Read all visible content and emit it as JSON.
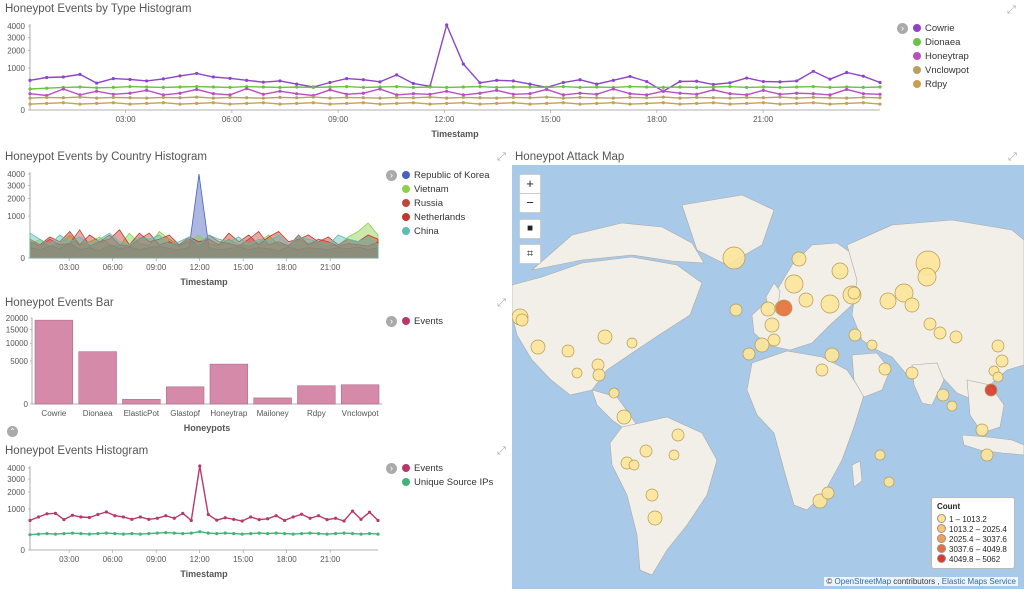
{
  "colors": {
    "cowrie": "#8e44c9",
    "dionaea": "#6cc247",
    "honeytrap": "#b84fc1",
    "vnclowpot": "#b8a15e",
    "rdpy": "#c8a050",
    "korea": "#4a5fbf",
    "vietnam": "#8ecf4a",
    "russia": "#c0463c",
    "netherlands": "#c0392b",
    "china": "#5cbdb2",
    "bar": "#d48aa8",
    "events": "#b8386a",
    "unique": "#43b37a"
  },
  "panel1": {
    "title": "Honeypot Events by Type Histogram",
    "xlabel": "Timestamp",
    "legend": [
      "Cowrie",
      "Dionaea",
      "Honeytrap",
      "Vnclowpot",
      "Rdpy"
    ]
  },
  "panel2": {
    "title": "Honeypot Events by Country Histogram",
    "xlabel": "Timestamp",
    "legend": [
      "Republic of Korea",
      "Vietnam",
      "Russia",
      "Netherlands",
      "China"
    ]
  },
  "panel3": {
    "title": "Honeypot Events Bar",
    "xlabel": "Honeypots",
    "legend": [
      "Events"
    ]
  },
  "panel4": {
    "title": "Honeypot Events Histogram",
    "xlabel": "Timestamp",
    "legend": [
      "Events",
      "Unique Source IPs"
    ]
  },
  "map": {
    "title": "Honeypot Attack Map",
    "controls": {
      "zoom_in": "+",
      "zoom_out": "−",
      "draw": "■",
      "crop": "⌗"
    },
    "legend_title": "Count",
    "legend": [
      "1 – 1013.2",
      "1013.2 – 2025.4",
      "2025.4 – 3037.6",
      "3037.6 – 4049.8",
      "4049.8 – 5062"
    ],
    "legend_colors": [
      "#fde59a",
      "#f8c873",
      "#f0a055",
      "#e5703f",
      "#d93a2b"
    ],
    "attribution": {
      "prefix": "©",
      "osm": "OpenStreetMap",
      "mid": "contributors ,",
      "ems": "Elastic Maps Service"
    }
  },
  "chart_data": [
    {
      "type": "line",
      "title": "Honeypot Events by Type Histogram",
      "xlabel": "Timestamp",
      "x_ticks": [
        "03:00",
        "06:00",
        "09:00",
        "12:00",
        "15:00",
        "18:00",
        "21:00"
      ],
      "y_ticks": [
        "0",
        "1000",
        "2000",
        "3000",
        "4000"
      ],
      "ylim": [
        0,
        4200
      ],
      "series": [
        {
          "name": "Cowrie",
          "values": [
            500,
            600,
            620,
            720,
            410,
            560,
            530,
            480,
            550,
            660,
            760,
            620,
            570,
            500,
            440,
            480,
            380,
            300,
            430,
            560,
            520,
            450,
            700,
            400,
            320,
            4100,
            1200,
            420,
            500,
            480,
            380,
            290,
            430,
            520,
            380,
            500,
            640,
            460,
            200,
            460,
            470,
            370,
            420,
            580,
            460,
            450,
            480,
            850,
            540,
            800,
            650,
            430
          ]
        },
        {
          "name": "Dionaea",
          "values": [
            250,
            270,
            290,
            300,
            280,
            290,
            310,
            300,
            290,
            300,
            310,
            300,
            290,
            310,
            300,
            290,
            300,
            290,
            300,
            310,
            290,
            300,
            310,
            290,
            300,
            290,
            300,
            310,
            290,
            300,
            300,
            290,
            310,
            290,
            300,
            290,
            310,
            300,
            290,
            300,
            290,
            300,
            310,
            290,
            300,
            290,
            300,
            310,
            290,
            300,
            290,
            300
          ]
        },
        {
          "name": "Honeytrap",
          "values": [
            150,
            120,
            250,
            130,
            200,
            140,
            160,
            220,
            130,
            160,
            240,
            150,
            130,
            260,
            140,
            200,
            150,
            120,
            230,
            140,
            160,
            250,
            130,
            150,
            140,
            200,
            130,
            160,
            220,
            140,
            150,
            240,
            130,
            160,
            140,
            250,
            150,
            130,
            200,
            160,
            140,
            230,
            150,
            130,
            220,
            140,
            160,
            150,
            130,
            240,
            150,
            140
          ]
        },
        {
          "name": "Vnclowpot",
          "values": [
            80,
            90,
            85,
            95,
            80,
            90,
            85,
            80,
            90,
            85,
            95,
            80,
            90,
            85,
            80,
            90,
            85,
            95,
            80,
            90,
            85,
            80,
            90,
            85,
            95,
            80,
            90,
            85,
            80,
            90,
            85,
            95,
            80,
            90,
            85,
            80,
            90,
            85,
            95,
            80,
            90,
            85,
            80,
            90,
            85,
            95,
            80,
            90,
            85,
            80,
            90,
            85
          ]
        },
        {
          "name": "Rdpy",
          "values": [
            20,
            25,
            30,
            20,
            25,
            30,
            20,
            25,
            30,
            20,
            25,
            30,
            20,
            25,
            30,
            20,
            25,
            30,
            20,
            25,
            30,
            20,
            25,
            30,
            20,
            25,
            30,
            20,
            25,
            30,
            20,
            25,
            30,
            20,
            25,
            30,
            20,
            25,
            30,
            20,
            25,
            30,
            20,
            25,
            30,
            20,
            25,
            30,
            20,
            25,
            30,
            20
          ]
        }
      ]
    },
    {
      "type": "area",
      "title": "Honeypot Events by Country Histogram",
      "xlabel": "Timestamp",
      "x_ticks": [
        "03:00",
        "06:00",
        "09:00",
        "12:00",
        "15:00",
        "18:00",
        "21:00"
      ],
      "y_ticks": [
        "0",
        "1000",
        "2000",
        "3000",
        "4000"
      ],
      "ylim": [
        0,
        4200
      ],
      "series": [
        {
          "name": "Republic of Korea",
          "values": [
            60,
            40,
            80,
            50,
            120,
            40,
            60,
            30,
            90,
            50,
            70,
            40,
            60,
            80,
            50,
            40,
            60,
            4000,
            60,
            40,
            50,
            70,
            40,
            60,
            50,
            30,
            70,
            40,
            60,
            50,
            40,
            60,
            50,
            70,
            40,
            60
          ]
        },
        {
          "name": "Vietnam",
          "values": [
            100,
            200,
            80,
            120,
            300,
            90,
            150,
            250,
            100,
            80,
            350,
            120,
            90,
            400,
            200,
            100,
            150,
            300,
            120,
            90,
            200,
            100,
            80,
            150,
            300,
            100,
            90,
            200,
            120,
            150,
            100,
            80,
            250,
            400,
            700,
            300
          ]
        },
        {
          "name": "Russia",
          "values": [
            150,
            80,
            200,
            100,
            120,
            450,
            80,
            150,
            300,
            100,
            80,
            200,
            350,
            100,
            150,
            80,
            200,
            100,
            300,
            150,
            120,
            80,
            200,
            400,
            100,
            150,
            80,
            300,
            100,
            200,
            150,
            80,
            120,
            100,
            80,
            150
          ]
        },
        {
          "name": "Netherlands",
          "values": [
            200,
            100,
            250,
            150,
            400,
            100,
            300,
            150,
            200,
            450,
            100,
            350,
            150,
            200,
            300,
            100,
            250,
            150,
            200,
            100,
            350,
            150,
            300,
            100,
            250,
            400,
            150,
            200,
            300,
            150,
            250,
            100,
            200,
            150,
            300,
            200
          ]
        },
        {
          "name": "China",
          "values": [
            350,
            200,
            100,
            300,
            150,
            250,
            100,
            200,
            350,
            150,
            100,
            250,
            200,
            300,
            100,
            150,
            250,
            100,
            300,
            200,
            150,
            250,
            100,
            200,
            150,
            300,
            100,
            250,
            200,
            150,
            100,
            300,
            200,
            150,
            250,
            100
          ]
        }
      ]
    },
    {
      "type": "bar",
      "title": "Honeypot Events Bar",
      "xlabel": "Honeypots",
      "categories": [
        "Cowrie",
        "Dionaea",
        "ElasticPot",
        "Glastopf",
        "Honeytrap",
        "Mailoney",
        "Rdpy",
        "Vnclowpot"
      ],
      "values": [
        19000,
        7400,
        60,
        800,
        4300,
        100,
        900,
        1000
      ],
      "y_ticks": [
        "0",
        "5000",
        "10000",
        "15000",
        "20000"
      ],
      "ylim": [
        0,
        20000
      ]
    },
    {
      "type": "line",
      "title": "Honeypot Events Histogram",
      "xlabel": "Timestamp",
      "x_ticks": [
        "03:00",
        "06:00",
        "09:00",
        "12:00",
        "15:00",
        "18:00",
        "21:00"
      ],
      "y_ticks": [
        "0",
        "1000",
        "2000",
        "3000",
        "4000"
      ],
      "ylim": [
        0,
        4200
      ],
      "series": [
        {
          "name": "Events",
          "values": [
            520,
            650,
            780,
            800,
            550,
            720,
            650,
            630,
            750,
            860,
            700,
            650,
            560,
            650,
            560,
            600,
            700,
            600,
            800,
            520,
            4200,
            750,
            530,
            620,
            560,
            500,
            650,
            550,
            580,
            700,
            520,
            650,
            760,
            600,
            700,
            550,
            600,
            500,
            900,
            560,
            850,
            520
          ]
        },
        {
          "name": "Unique Source IPs",
          "values": [
            140,
            150,
            160,
            150,
            160,
            170,
            160,
            150,
            160,
            170,
            160,
            150,
            160,
            150,
            160,
            170,
            180,
            170,
            160,
            170,
            200,
            170,
            160,
            170,
            160,
            150,
            160,
            170,
            160,
            170,
            160,
            150,
            160,
            170,
            160,
            150,
            160,
            170,
            160,
            150,
            160,
            150
          ]
        }
      ]
    }
  ]
}
